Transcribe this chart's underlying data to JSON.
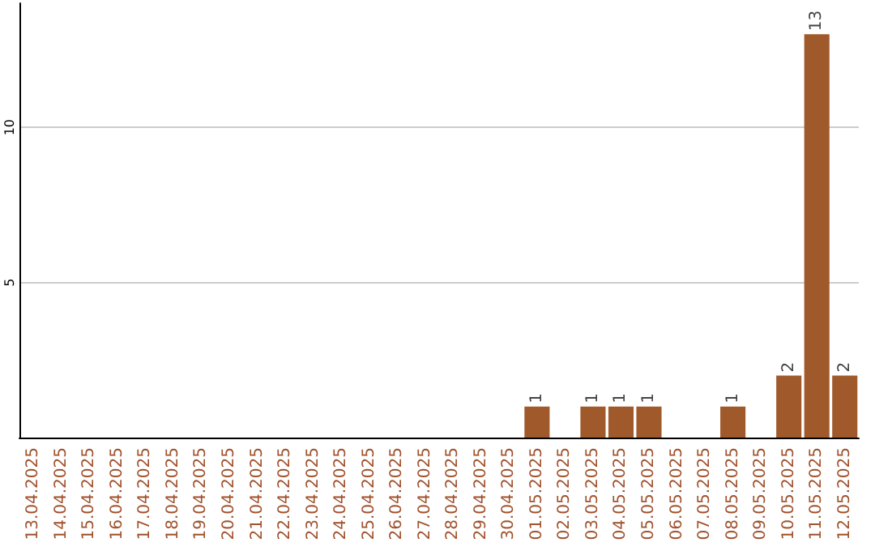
{
  "chart_data": {
    "type": "bar",
    "categories": [
      "13.04.2025",
      "14.04.2025",
      "15.04.2025",
      "16.04.2025",
      "17.04.2025",
      "18.04.2025",
      "19.04.2025",
      "20.04.2025",
      "21.04.2025",
      "22.04.2025",
      "23.04.2025",
      "24.04.2025",
      "25.04.2025",
      "26.04.2025",
      "27.04.2025",
      "28.04.2025",
      "29.04.2025",
      "30.04.2025",
      "01.05.2025",
      "02.05.2025",
      "03.05.2025",
      "04.05.2025",
      "05.05.2025",
      "06.05.2025",
      "07.05.2025",
      "08.05.2025",
      "09.05.2025",
      "10.05.2025",
      "11.05.2025",
      "12.05.2025"
    ],
    "values": [
      0,
      0,
      0,
      0,
      0,
      0,
      0,
      0,
      0,
      0,
      0,
      0,
      0,
      0,
      0,
      0,
      0,
      0,
      1,
      0,
      1,
      1,
      1,
      0,
      0,
      1,
      0,
      2,
      13,
      2
    ],
    "value_labels": [
      null,
      null,
      null,
      null,
      null,
      null,
      null,
      null,
      null,
      null,
      null,
      null,
      null,
      null,
      null,
      null,
      null,
      null,
      "1",
      null,
      "1",
      "1",
      "1",
      null,
      null,
      "1",
      null,
      "2",
      "13",
      "2"
    ],
    "color": "#a0592a",
    "ylim": [
      0,
      14
    ],
    "yticks": [
      5,
      10
    ],
    "grid": "y"
  }
}
